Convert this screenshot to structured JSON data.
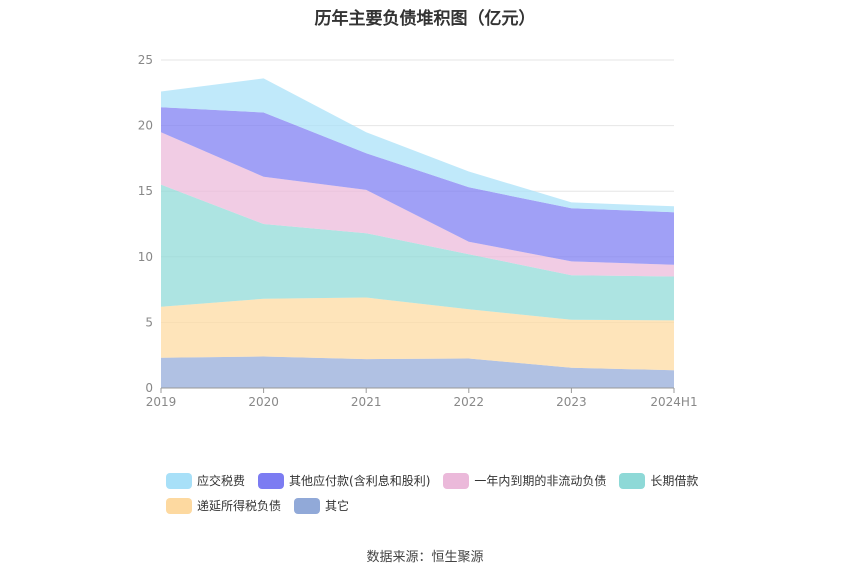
{
  "title": "历年主要负债堆积图（亿元）",
  "source": "数据来源：恒生聚源",
  "chart_data": {
    "type": "area",
    "stacked": true,
    "categories": [
      "2019",
      "2020",
      "2021",
      "2022",
      "2023",
      "2024H1"
    ],
    "ylim": [
      0,
      25
    ],
    "yticks": [
      "0",
      "5",
      "10",
      "15",
      "20",
      "25"
    ],
    "grid": true,
    "legend_position": "bottom",
    "series": [
      {
        "name": "其它",
        "color": "#91a9d8",
        "values": [
          2.3,
          2.4,
          2.2,
          2.25,
          1.55,
          1.35
        ]
      },
      {
        "name": "递延所得税负债",
        "color": "#fdd9a0",
        "values": [
          3.9,
          4.4,
          4.7,
          3.75,
          3.65,
          3.8
        ]
      },
      {
        "name": "长期借款",
        "color": "#8ed9d7",
        "values": [
          9.3,
          5.7,
          4.9,
          4.2,
          3.4,
          3.35
        ]
      },
      {
        "name": "一年内到期的非流动负债",
        "color": "#ebb9da",
        "values": [
          4.0,
          3.6,
          3.3,
          0.95,
          1.05,
          0.9
        ]
      },
      {
        "name": "其他应付款(含利息和股利)",
        "color": "#7c7cf2",
        "values": [
          1.9,
          4.9,
          2.8,
          4.15,
          4.05,
          4.0
        ]
      },
      {
        "name": "应交税费",
        "color": "#a8e0f8",
        "values": [
          1.2,
          2.6,
          1.6,
          1.2,
          0.45,
          0.45
        ]
      }
    ]
  }
}
